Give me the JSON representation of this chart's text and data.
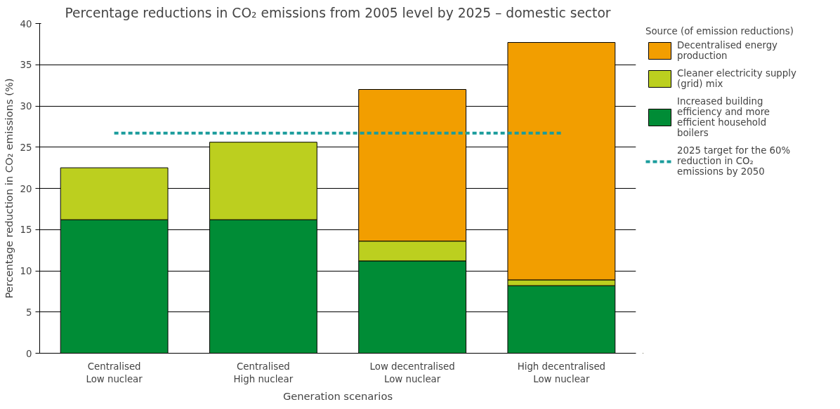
{
  "chart_data": {
    "type": "bar",
    "stacked": true,
    "title": "Percentage reductions in CO₂ emissions from 2005 level by 2025 – domestic sector",
    "xlabel": "Generation scenarios",
    "ylabel": "Percentage reduction in CO₂ emissions (%)",
    "legend_title": "Source (of emission reductions)",
    "categories": [
      "Centralised\nLow nuclear",
      "Centralised\nHigh nuclear",
      "Low decentralised\nLow nuclear",
      "High decentralised\nLow nuclear"
    ],
    "series": [
      {
        "name": "Increased building efficiency and more efficient household boilers",
        "color": "#008c36",
        "values": [
          16.2,
          16.2,
          11.2,
          8.2
        ]
      },
      {
        "name": "Cleaner electricity supply (grid) mix",
        "color": "#bccf1f",
        "values": [
          6.3,
          9.4,
          2.4,
          0.7
        ]
      },
      {
        "name": "Decentralised energy production",
        "color": "#f29e00",
        "values": [
          null,
          null,
          18.4,
          28.8
        ]
      }
    ],
    "ref_lines": [
      {
        "axis": "y",
        "value": 26.7,
        "label": "2025 target for the 60% reduction in CO₂ emissions by 2050",
        "color": "#1a9c9c",
        "line_style": "dashed"
      }
    ],
    "ylim": [
      0,
      40
    ],
    "yticks": [
      0,
      5,
      10,
      15,
      20,
      25,
      30,
      35,
      40
    ],
    "grid": "y",
    "legend": "top right"
  }
}
